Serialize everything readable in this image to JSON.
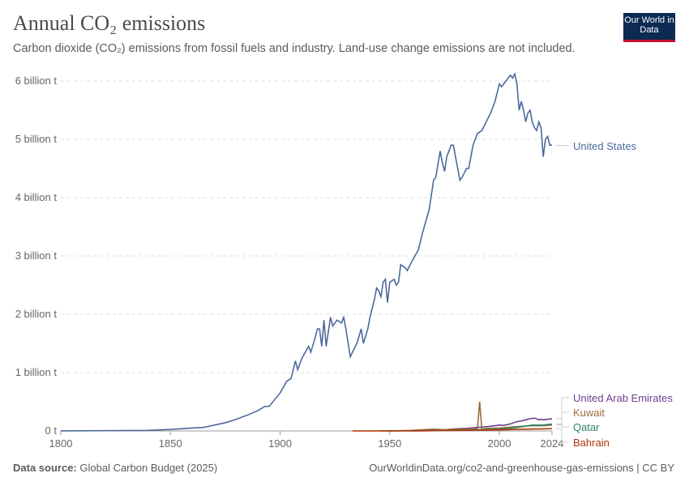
{
  "header": {
    "title": "Annual CO₂ emissions",
    "subtitle": "Carbon dioxide (CO₂) emissions from fossil fuels and industry. Land-use change emissions are not included.",
    "logo": "Our World in Data"
  },
  "footer": {
    "source_label": "Data source:",
    "source": "Global Carbon Budget (2025)",
    "url": "OurWorldinData.org/co2-and-greenhouse-gas-emissions | CC BY"
  },
  "chart_data": {
    "type": "line",
    "title": "Annual CO₂ emissions",
    "xlim": [
      1800,
      2024
    ],
    "ylim": [
      0,
      6000000000
    ],
    "x_ticks": [
      "1800",
      "1850",
      "1900",
      "1950",
      "2000",
      "2024"
    ],
    "x_tick_values": [
      1800,
      1850,
      1900,
      1950,
      2000,
      2024
    ],
    "y_ticks": [
      "0 t",
      "1 billion t",
      "2 billion t",
      "3 billion t",
      "4 billion t",
      "5 billion t",
      "6 billion t"
    ],
    "y_tick_values": [
      0,
      1,
      2,
      3,
      4,
      5,
      6
    ],
    "y_unit": "billion t",
    "grid": "horizontal dashed",
    "legend": "right, line-end labels",
    "series": [
      {
        "name": "United States",
        "color": "#4c6a9c",
        "x": [
          1800,
          1820,
          1840,
          1850,
          1860,
          1865,
          1870,
          1875,
          1880,
          1885,
          1890,
          1893,
          1895,
          1900,
          1903,
          1905,
          1907,
          1908,
          1910,
          1913,
          1914,
          1916,
          1917,
          1918,
          1919,
          1920,
          1921,
          1922,
          1923,
          1924,
          1926,
          1928,
          1929,
          1930,
          1932,
          1933,
          1935,
          1937,
          1938,
          1940,
          1941,
          1943,
          1944,
          1945,
          1946,
          1947,
          1948,
          1949,
          1950,
          1952,
          1953,
          1954,
          1955,
          1957,
          1958,
          1960,
          1963,
          1965,
          1968,
          1970,
          1971,
          1973,
          1974,
          1975,
          1976,
          1978,
          1979,
          1980,
          1982,
          1983,
          1985,
          1986,
          1988,
          1989,
          1990,
          1992,
          1994,
          1996,
          1998,
          2000,
          2001,
          2002,
          2004,
          2005,
          2006,
          2007,
          2008,
          2009,
          2010,
          2011,
          2012,
          2013,
          2014,
          2015,
          2016,
          2017,
          2018,
          2019,
          2020,
          2021,
          2022,
          2023,
          2024
        ],
        "values": [
          0.001,
          0.005,
          0.01,
          0.025,
          0.05,
          0.06,
          0.1,
          0.14,
          0.2,
          0.27,
          0.35,
          0.42,
          0.42,
          0.65,
          0.85,
          0.9,
          1.2,
          1.05,
          1.25,
          1.45,
          1.35,
          1.6,
          1.75,
          1.75,
          1.45,
          1.9,
          1.45,
          1.7,
          1.95,
          1.8,
          1.9,
          1.85,
          1.95,
          1.75,
          1.27,
          1.35,
          1.5,
          1.75,
          1.5,
          1.75,
          1.95,
          2.25,
          2.45,
          2.4,
          2.3,
          2.55,
          2.6,
          2.2,
          2.55,
          2.6,
          2.5,
          2.55,
          2.85,
          2.8,
          2.75,
          2.9,
          3.1,
          3.4,
          3.8,
          4.3,
          4.35,
          4.8,
          4.6,
          4.45,
          4.7,
          4.9,
          4.9,
          4.7,
          4.3,
          4.35,
          4.5,
          4.5,
          4.9,
          5.0,
          5.1,
          5.15,
          5.3,
          5.45,
          5.65,
          5.95,
          5.9,
          5.95,
          6.05,
          6.1,
          6.05,
          6.12,
          5.95,
          5.5,
          5.65,
          5.5,
          5.3,
          5.45,
          5.5,
          5.3,
          5.2,
          5.15,
          5.3,
          5.2,
          4.7,
          5.0,
          5.05,
          4.9,
          4.9
        ]
      },
      {
        "name": "United Arab Emirates",
        "color": "#6d3e91",
        "x": [
          1959,
          1965,
          1970,
          1975,
          1980,
          1985,
          1990,
          1995,
          1998,
          2000,
          2002,
          2005,
          2008,
          2010,
          2012,
          2014,
          2016,
          2018,
          2019,
          2020,
          2022,
          2024
        ],
        "values": [
          0,
          0.001,
          0.005,
          0.02,
          0.035,
          0.045,
          0.06,
          0.075,
          0.09,
          0.1,
          0.095,
          0.12,
          0.16,
          0.17,
          0.19,
          0.21,
          0.22,
          0.19,
          0.2,
          0.19,
          0.2,
          0.21
        ]
      },
      {
        "name": "Kuwait",
        "color": "#996d39",
        "x": [
          1946,
          1955,
          1960,
          1965,
          1970,
          1975,
          1980,
          1985,
          1988,
          1990,
          1991,
          1992,
          1995,
          2000,
          2005,
          2010,
          2015,
          2020,
          2024
        ],
        "values": [
          0,
          0.005,
          0.01,
          0.02,
          0.03,
          0.02,
          0.03,
          0.03,
          0.04,
          0.04,
          0.5,
          0.03,
          0.045,
          0.05,
          0.065,
          0.08,
          0.09,
          0.09,
          0.1
        ]
      },
      {
        "name": "Qatar",
        "color": "#2c8465",
        "x": [
          1949,
          1960,
          1970,
          1980,
          1990,
          2000,
          2005,
          2010,
          2015,
          2020,
          2024
        ],
        "values": [
          0,
          0.002,
          0.007,
          0.015,
          0.02,
          0.03,
          0.045,
          0.07,
          0.1,
          0.1,
          0.12
        ]
      },
      {
        "name": "Bahrain",
        "color": "#b13507",
        "x": [
          1933,
          1950,
          1960,
          1970,
          1980,
          1990,
          2000,
          2010,
          2020,
          2024
        ],
        "values": [
          0,
          0.001,
          0.003,
          0.006,
          0.01,
          0.013,
          0.018,
          0.028,
          0.035,
          0.04
        ]
      }
    ]
  }
}
